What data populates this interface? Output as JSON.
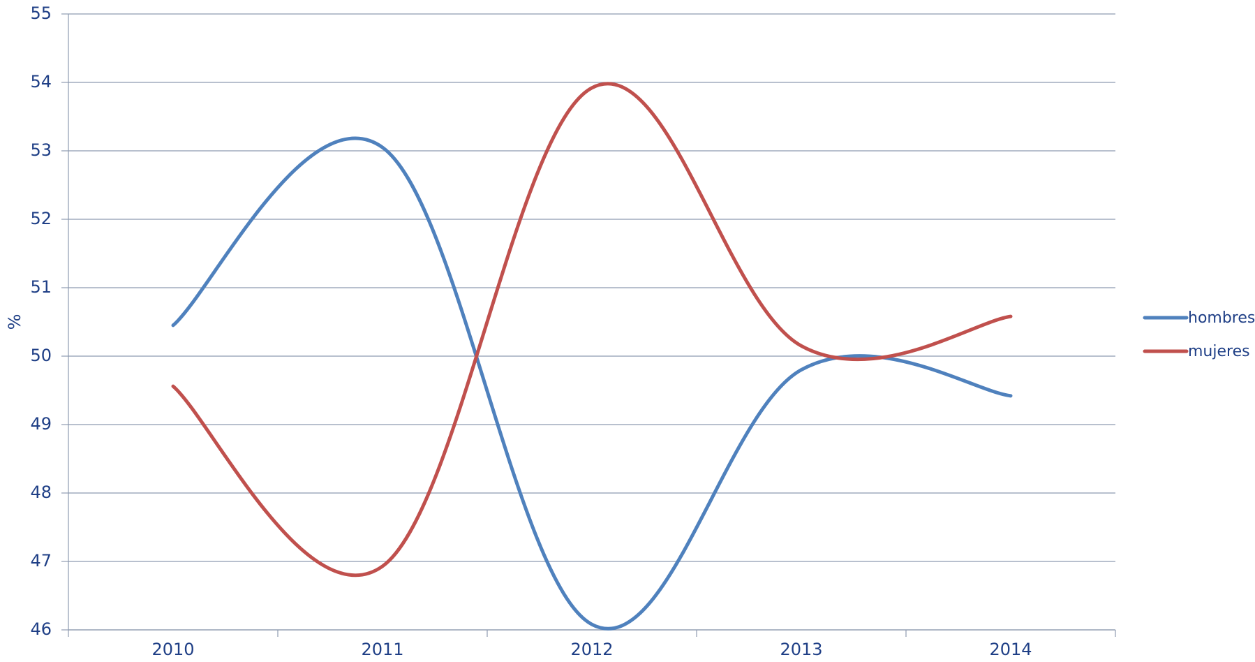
{
  "chart_data": {
    "type": "line",
    "title": "",
    "xlabel": "",
    "ylabel": "%",
    "categories": [
      "2010",
      "2011",
      "2012",
      "2013",
      "2014"
    ],
    "ylim": [
      46,
      55
    ],
    "yticks": [
      46,
      47,
      48,
      49,
      50,
      51,
      52,
      53,
      54,
      55
    ],
    "grid": true,
    "legend_position": "right",
    "series": [
      {
        "name": "hombres",
        "color": "#4f81bd",
        "values": [
          50.45,
          53.05,
          46.08,
          49.8,
          49.42
        ]
      },
      {
        "name": "mujeres",
        "color": "#c0504d",
        "values": [
          49.56,
          46.93,
          53.92,
          50.15,
          50.58
        ]
      }
    ]
  }
}
